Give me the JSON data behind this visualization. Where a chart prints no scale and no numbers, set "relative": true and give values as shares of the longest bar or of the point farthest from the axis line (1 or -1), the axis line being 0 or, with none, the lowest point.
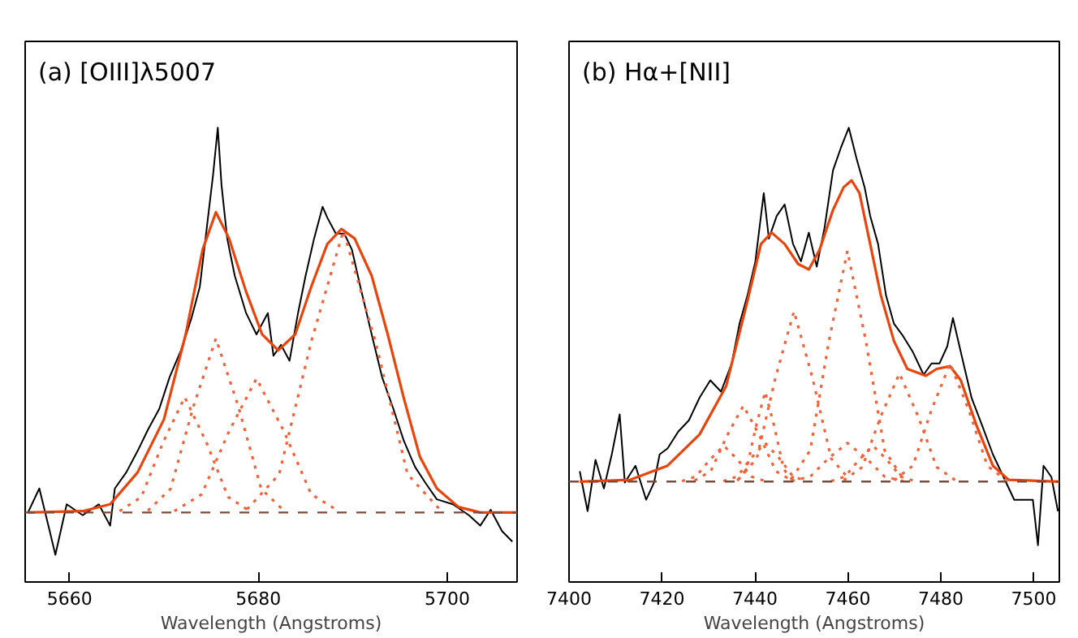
{
  "chart_data": [
    {
      "type": "line",
      "title": "(a) [OIII]λ5007",
      "xlabel": "Wavelength (Angstroms)",
      "relative": true,
      "xlim": [
        5655.3,
        5707.4
      ],
      "xticks": [
        5660,
        5680,
        5700
      ],
      "tick_labels": "x",
      "grid": false,
      "marker": "none",
      "ref_lines": [
        {
          "axis": "y",
          "value": 0.153,
          "color": "#7a4a3a",
          "line_style": "dashed"
        }
      ],
      "series": [
        {
          "color": "#000000",
          "line_style": "solid",
          "x": [
            5655.6,
            5656.8,
            5657.9,
            5658.5,
            5659.7,
            5661.4,
            5663.1,
            5664.3,
            5664.8,
            5666.0,
            5667.2,
            5668.3,
            5669.5,
            5670.6,
            5671.8,
            5672.9,
            5673.8,
            5674.6,
            5675.2,
            5675.7,
            5676.1,
            5676.7,
            5677.5,
            5678.7,
            5679.8,
            5681.0,
            5681.6,
            5682.4,
            5683.3,
            5684.2,
            5685.0,
            5685.9,
            5686.8,
            5687.3,
            5688.2,
            5689.1,
            5689.9,
            5690.8,
            5692.0,
            5693.1,
            5694.3,
            5695.4,
            5696.6,
            5697.7,
            5698.9,
            5700.6,
            5702.3,
            5703.5,
            5704.6,
            5705.8,
            5706.9
          ],
          "values": [
            0.153,
            0.206,
            0.112,
            0.06,
            0.171,
            0.147,
            0.171,
            0.124,
            0.206,
            0.241,
            0.288,
            0.335,
            0.381,
            0.451,
            0.51,
            0.58,
            0.65,
            0.791,
            0.896,
            1.0,
            0.873,
            0.756,
            0.674,
            0.592,
            0.545,
            0.592,
            0.498,
            0.522,
            0.487,
            0.592,
            0.674,
            0.756,
            0.826,
            0.802,
            0.767,
            0.767,
            0.732,
            0.65,
            0.545,
            0.451,
            0.381,
            0.311,
            0.253,
            0.218,
            0.182,
            0.171,
            0.147,
            0.124,
            0.159,
            0.112,
            0.089
          ]
        },
        {
          "color": "#e8440c",
          "line_style": "solid",
          "x": [
            5655.6,
            5661.4,
            5664.3,
            5667.2,
            5670.0,
            5672.3,
            5674.1,
            5675.5,
            5676.9,
            5678.7,
            5680.4,
            5682.1,
            5683.9,
            5685.6,
            5687.3,
            5688.8,
            5690.2,
            5692.0,
            5693.7,
            5695.4,
            5697.1,
            5698.9,
            5701.2,
            5703.5,
            5707.4
          ],
          "values": [
            0.153,
            0.156,
            0.171,
            0.241,
            0.358,
            0.545,
            0.732,
            0.814,
            0.756,
            0.639,
            0.545,
            0.51,
            0.545,
            0.65,
            0.744,
            0.777,
            0.756,
            0.674,
            0.545,
            0.405,
            0.276,
            0.206,
            0.165,
            0.153,
            0.153
          ]
        },
        {
          "color": "#f0643c",
          "line_style": "dotted",
          "x": [
            5665.3,
            5667.6,
            5669.9,
            5672.2,
            5674.5,
            5676.8,
            5679.1
          ],
          "values": [
            0.156,
            0.187,
            0.307,
            0.407,
            0.307,
            0.187,
            0.156
          ]
        },
        {
          "color": "#f0643c",
          "line_style": "dotted",
          "x": [
            5668.3,
            5670.7,
            5673.1,
            5675.5,
            5677.9,
            5680.3,
            5682.7
          ],
          "values": [
            0.157,
            0.205,
            0.385,
            0.536,
            0.385,
            0.205,
            0.157
          ]
        },
        {
          "color": "#f0643c",
          "line_style": "dotted",
          "x": [
            5671.1,
            5674.0,
            5676.9,
            5679.8,
            5682.7,
            5685.6,
            5688.5
          ],
          "values": [
            0.156,
            0.193,
            0.332,
            0.448,
            0.332,
            0.193,
            0.156
          ]
        },
        {
          "color": "#f0643c",
          "line_style": "dotted",
          "x": [
            5678.8,
            5682.2,
            5685.6,
            5689.0,
            5692.4,
            5695.8,
            5699.2
          ],
          "values": [
            0.16,
            0.237,
            0.529,
            0.773,
            0.529,
            0.237,
            0.16
          ]
        }
      ]
    },
    {
      "type": "line",
      "title": "(b) Hα+[NII]",
      "xlabel": "Wavelength (Angstroms)",
      "relative": true,
      "xlim": [
        7400,
        7505.5
      ],
      "xticks": [
        7400,
        7420,
        7440,
        7460,
        7480,
        7500
      ],
      "tick_labels": "x",
      "grid": false,
      "marker": "none",
      "ref_lines": [
        {
          "axis": "y",
          "value": 0.221,
          "color": "#7a4a3a",
          "line_style": "dashed"
        }
      ],
      "series": [
        {
          "color": "#000000",
          "line_style": "solid",
          "x": [
            7402.3,
            7404.0,
            7405.7,
            7407.5,
            7409.2,
            7410.9,
            7412.0,
            7414.3,
            7416.6,
            7418.3,
            7419.5,
            7421.2,
            7423.5,
            7425.8,
            7428.1,
            7430.4,
            7432.7,
            7435.0,
            7436.7,
            7438.4,
            7440.1,
            7441.9,
            7443.0,
            7444.7,
            7446.4,
            7448.2,
            7449.9,
            7451.6,
            7453.3,
            7455.0,
            7456.8,
            7458.5,
            7460.2,
            7461.9,
            7463.6,
            7464.8,
            7466.5,
            7468.2,
            7469.9,
            7471.7,
            7474.0,
            7476.3,
            7478.0,
            7479.7,
            7481.4,
            7482.6,
            7484.3,
            7486.6,
            7488.9,
            7491.2,
            7493.5,
            7495.8,
            7498.1,
            7499.8,
            7500.9,
            7502.1,
            7503.8,
            7505.2
          ],
          "values": [
            0.244,
            0.156,
            0.269,
            0.206,
            0.281,
            0.369,
            0.219,
            0.256,
            0.181,
            0.219,
            0.281,
            0.294,
            0.331,
            0.356,
            0.406,
            0.444,
            0.419,
            0.481,
            0.569,
            0.631,
            0.706,
            0.856,
            0.756,
            0.806,
            0.831,
            0.744,
            0.706,
            0.769,
            0.694,
            0.781,
            0.906,
            0.956,
            1.0,
            0.931,
            0.869,
            0.806,
            0.744,
            0.631,
            0.569,
            0.544,
            0.506,
            0.456,
            0.481,
            0.481,
            0.519,
            0.581,
            0.506,
            0.406,
            0.344,
            0.281,
            0.231,
            0.181,
            0.181,
            0.181,
            0.081,
            0.256,
            0.231,
            0.156
          ]
        },
        {
          "color": "#e8440c",
          "line_style": "solid",
          "x": [
            7402.3,
            7413.2,
            7421.2,
            7428.1,
            7433.8,
            7438.4,
            7441.3,
            7443.6,
            7446.4,
            7449.3,
            7451.6,
            7453.9,
            7456.8,
            7459.1,
            7460.8,
            7462.5,
            7464.8,
            7467.1,
            7469.9,
            7472.8,
            7476.8,
            7479.1,
            7482.0,
            7484.3,
            7487.7,
            7491.2,
            7494.6,
            7505.5
          ],
          "values": [
            0.221,
            0.225,
            0.256,
            0.325,
            0.431,
            0.619,
            0.744,
            0.769,
            0.744,
            0.7,
            0.688,
            0.731,
            0.819,
            0.869,
            0.884,
            0.856,
            0.744,
            0.631,
            0.531,
            0.469,
            0.454,
            0.469,
            0.475,
            0.444,
            0.344,
            0.256,
            0.225,
            0.221
          ]
        },
        {
          "color": "#f0643c",
          "line_style": "dotted",
          "x": [
            7424.3,
            7427.3,
            7430.3,
            7433.3,
            7436.3,
            7439.3,
            7442.3
          ],
          "values": [
            0.222,
            0.232,
            0.269,
            0.3,
            0.269,
            0.232,
            0.222
          ]
        },
        {
          "color": "#f0643c",
          "line_style": "dotted",
          "x": [
            7427.0,
            7430.5,
            7434.0,
            7437.5,
            7441.0,
            7444.5,
            7448.0
          ],
          "values": [
            0.223,
            0.244,
            0.322,
            0.388,
            0.322,
            0.244,
            0.223
          ]
        },
        {
          "color": "#f0643c",
          "line_style": "dotted",
          "x": [
            7436.2,
            7438.2,
            7440.2,
            7442.2,
            7444.2,
            7446.2,
            7448.2
          ],
          "values": [
            0.223,
            0.248,
            0.341,
            0.419,
            0.341,
            0.248,
            0.223
          ]
        },
        {
          "color": "#f0643c",
          "line_style": "dotted",
          "x": [
            7433.2,
            7436.2,
            7439.2,
            7442.2,
            7445.2,
            7448.2,
            7451.2
          ],
          "values": [
            0.222,
            0.232,
            0.273,
            0.306,
            0.273,
            0.232,
            0.222
          ]
        },
        {
          "color": "#f0643c",
          "line_style": "dotted",
          "x": [
            7436.4,
            7440.4,
            7444.4,
            7448.4,
            7452.4,
            7456.4,
            7460.4
          ],
          "values": [
            0.225,
            0.272,
            0.449,
            0.596,
            0.449,
            0.272,
            0.225
          ]
        },
        {
          "color": "#f0643c",
          "line_style": "dotted",
          "x": [
            7447.9,
            7451.9,
            7455.9,
            7459.9,
            7463.9,
            7467.9,
            7471.9
          ],
          "values": [
            0.227,
            0.29,
            0.529,
            0.729,
            0.529,
            0.29,
            0.227
          ]
        },
        {
          "color": "#f0643c",
          "line_style": "dotted",
          "x": [
            7447.9,
            7451.9,
            7455.9,
            7459.9,
            7463.9,
            7467.9,
            7471.9
          ],
          "values": [
            0.222,
            0.232,
            0.273,
            0.306,
            0.273,
            0.232,
            0.222
          ]
        },
        {
          "color": "#f0643c",
          "line_style": "dotted",
          "x": [
            7456.4,
            7459.4,
            7462.4,
            7465.4,
            7468.4,
            7471.4,
            7474.4
          ],
          "values": [
            0.222,
            0.232,
            0.269,
            0.3,
            0.269,
            0.232,
            0.222
          ]
        },
        {
          "color": "#f0643c",
          "line_style": "dotted",
          "x": [
            7459.1,
            7463.1,
            7467.1,
            7471.1,
            7475.1,
            7479.1,
            7483.1
          ],
          "values": [
            0.224,
            0.253,
            0.365,
            0.459,
            0.365,
            0.253,
            0.224
          ]
        },
        {
          "color": "#f0643c",
          "line_style": "dotted",
          "x": [
            7470.0,
            7474.0,
            7478.0,
            7482.0,
            7486.0,
            7490.0,
            7494.0
          ],
          "values": [
            0.224,
            0.256,
            0.379,
            0.481,
            0.379,
            0.256,
            0.224
          ]
        }
      ]
    }
  ]
}
